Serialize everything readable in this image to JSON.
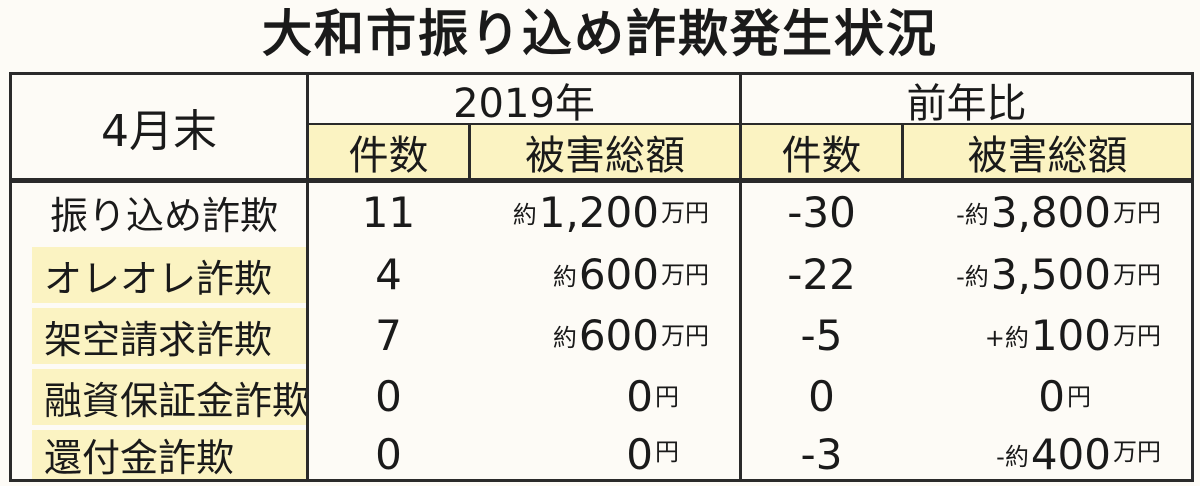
{
  "title": "大和市振り込め詐欺発生状況",
  "header": {
    "period": "4月末",
    "group_current": "2019年",
    "group_compare": "前年比",
    "col_count": "件数",
    "col_amount": "被害総額"
  },
  "rows": [
    {
      "label": "振り込め詐欺",
      "count": "11",
      "amount_prefix": "約",
      "amount": "1,200",
      "amount_unit": "万円",
      "diff_count": "-30",
      "diff_prefix": "-約",
      "diff_amount": "3,800",
      "diff_unit": "万円"
    },
    {
      "label": "オレオレ詐欺",
      "count": "4",
      "amount_prefix": "約",
      "amount": "600",
      "amount_unit": "万円",
      "diff_count": "-22",
      "diff_prefix": "-約",
      "diff_amount": "3,500",
      "diff_unit": "万円"
    },
    {
      "label": "架空請求詐欺",
      "count": "7",
      "amount_prefix": "約",
      "amount": "600",
      "amount_unit": "万円",
      "diff_count": "-5",
      "diff_prefix": "+約",
      "diff_amount": "100",
      "diff_unit": "万円"
    },
    {
      "label": "融資保証金詐欺",
      "count": "0",
      "amount_prefix": "",
      "amount": "0",
      "amount_unit": "円",
      "diff_count": "0",
      "diff_prefix": "",
      "diff_amount": "0",
      "diff_unit": "円"
    },
    {
      "label": "還付金詐欺",
      "count": "0",
      "amount_prefix": "",
      "amount": "0",
      "amount_unit": "円",
      "diff_count": "-3",
      "diff_prefix": "-約",
      "diff_amount": "400",
      "diff_unit": "万円"
    }
  ]
}
